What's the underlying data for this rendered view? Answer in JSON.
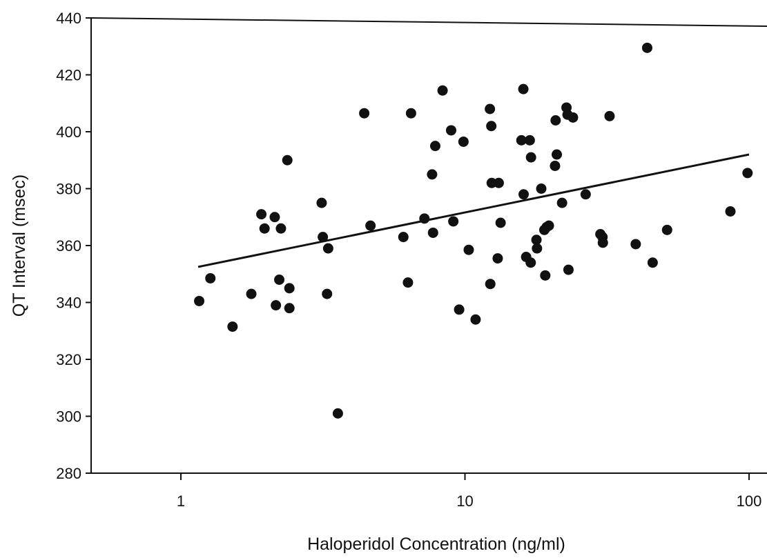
{
  "chart_data": {
    "type": "scatter",
    "title": "",
    "xlabel": "Haloperidol Concentration (ng/ml)",
    "ylabel": "QT Interval (msec)",
    "x_scale": "log",
    "xlim": [
      0.5,
      110
    ],
    "ylim": [
      280,
      440
    ],
    "x_ticks": [
      {
        "value": 1,
        "label": "1"
      },
      {
        "value": 10,
        "label": "10"
      },
      {
        "value": 100,
        "label": "100"
      }
    ],
    "y_ticks": [
      {
        "value": 280,
        "label": "280"
      },
      {
        "value": 300,
        "label": "300"
      },
      {
        "value": 320,
        "label": "320"
      },
      {
        "value": 340,
        "label": "340"
      },
      {
        "value": 360,
        "label": "360"
      },
      {
        "value": 380,
        "label": "380"
      },
      {
        "value": 400,
        "label": "400"
      },
      {
        "value": 420,
        "label": "420"
      },
      {
        "value": 440,
        "label": "440"
      }
    ],
    "grid": false,
    "legend": "none",
    "points": [
      [
        1.16,
        340.5
      ],
      [
        1.27,
        348.5
      ],
      [
        1.52,
        331.5
      ],
      [
        1.77,
        343
      ],
      [
        1.92,
        371
      ],
      [
        1.97,
        366
      ],
      [
        2.14,
        370
      ],
      [
        2.16,
        339
      ],
      [
        2.22,
        348
      ],
      [
        2.25,
        366
      ],
      [
        2.37,
        390
      ],
      [
        2.41,
        345
      ],
      [
        2.41,
        338
      ],
      [
        3.13,
        375
      ],
      [
        3.16,
        363
      ],
      [
        3.27,
        343
      ],
      [
        3.3,
        359
      ],
      [
        3.57,
        301
      ],
      [
        4.42,
        406.5
      ],
      [
        4.65,
        367
      ],
      [
        6.07,
        363
      ],
      [
        6.3,
        347
      ],
      [
        6.46,
        406.5
      ],
      [
        7.2,
        369.5
      ],
      [
        7.66,
        385
      ],
      [
        7.72,
        364.5
      ],
      [
        7.86,
        395
      ],
      [
        8.34,
        414.5
      ],
      [
        8.94,
        400.5
      ],
      [
        9.1,
        368.5
      ],
      [
        9.54,
        337.5
      ],
      [
        9.88,
        396.5
      ],
      [
        10.31,
        358.5
      ],
      [
        10.9,
        334
      ],
      [
        12.24,
        408
      ],
      [
        12.28,
        346.5
      ],
      [
        12.38,
        402
      ],
      [
        12.42,
        382
      ],
      [
        13.04,
        355.5
      ],
      [
        13.15,
        382
      ],
      [
        13.35,
        368
      ],
      [
        15.8,
        397
      ],
      [
        16.05,
        415
      ],
      [
        16.09,
        378
      ],
      [
        16.42,
        356
      ],
      [
        16.91,
        397
      ],
      [
        17.04,
        354
      ],
      [
        17.08,
        391
      ],
      [
        17.85,
        362
      ],
      [
        17.93,
        359
      ],
      [
        18.56,
        380
      ],
      [
        19.03,
        365.5
      ],
      [
        19.17,
        349.5
      ],
      [
        19.39,
        366.5
      ],
      [
        19.74,
        367
      ],
      [
        20.75,
        388
      ],
      [
        20.85,
        404
      ],
      [
        21.05,
        392
      ],
      [
        21.97,
        375
      ],
      [
        22.77,
        408.5
      ],
      [
        22.96,
        406
      ],
      [
        23.14,
        351.5
      ],
      [
        24.0,
        405
      ],
      [
        26.6,
        378
      ],
      [
        29.97,
        364
      ],
      [
        30.49,
        363
      ],
      [
        30.58,
        361
      ],
      [
        32.29,
        405.5
      ],
      [
        39.91,
        360.5
      ],
      [
        43.8,
        429.5
      ],
      [
        45.78,
        354
      ],
      [
        51.47,
        365.5
      ],
      [
        85.97,
        372
      ],
      [
        98.77,
        385.5
      ]
    ],
    "trendline": {
      "x": [
        1.15,
        100
      ],
      "y": [
        352.5,
        392
      ]
    }
  }
}
